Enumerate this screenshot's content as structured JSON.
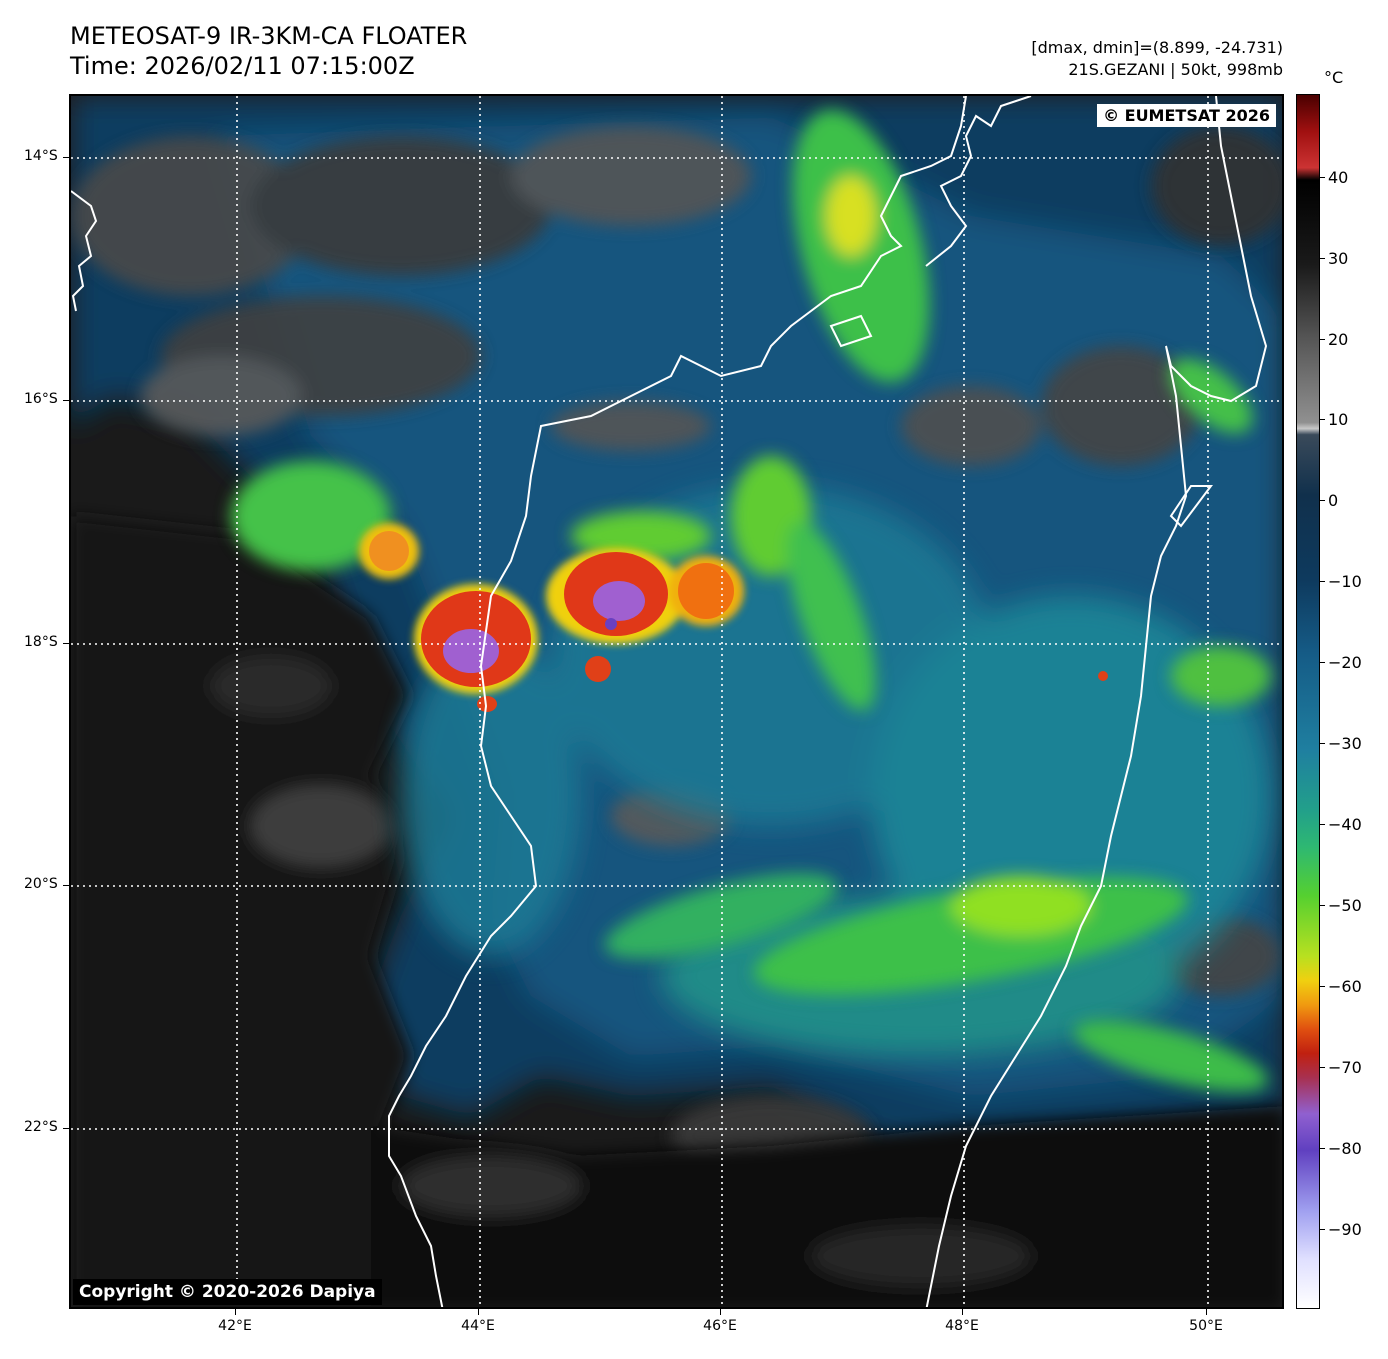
{
  "header": {
    "title_line1": "METEOSAT-9 IR-3KM-CA FLOATER",
    "title_line2": "Time: 2026/02/11 07:15:00Z",
    "info_line1": "[dmax, dmin]=(8.899, -24.731)",
    "info_line2": "21S.GEZANI | 50kt, 998mb"
  },
  "map": {
    "badge_top_right": "© EUMETSAT 2026",
    "badge_bottom_left": "Copyright © 2020-2026 Dapiya",
    "lat_labels": [
      "14°S",
      "16°S",
      "18°S",
      "20°S",
      "22°S"
    ],
    "lon_labels": [
      "42°E",
      "44°E",
      "46°E",
      "48°E",
      "50°E"
    ]
  },
  "colorbar": {
    "unit": "°C",
    "labels": [
      "40",
      "30",
      "20",
      "10",
      "0",
      "−10",
      "−20",
      "−30",
      "−40",
      "−50",
      "−60",
      "−70",
      "−80",
      "−90"
    ]
  },
  "colors": {
    "coast": "#ffffff",
    "cold_top": "#9b5fd0",
    "convection": "#e02810",
    "cloud_green": "#55d030",
    "ocean": "#0e3a5e"
  }
}
